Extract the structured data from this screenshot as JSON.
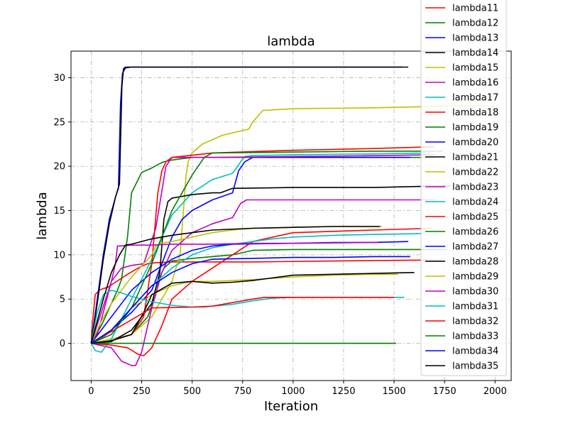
{
  "chart_data": {
    "type": "line",
    "title": "lambda",
    "xlabel": "Iteration",
    "ylabel": "lambda",
    "xlim": [
      -100,
      2080
    ],
    "ylim": [
      -4.2,
      33
    ],
    "xticks": [
      0,
      250,
      500,
      750,
      1000,
      1250,
      1500,
      1750,
      2000
    ],
    "yticks": [
      0,
      5,
      10,
      15,
      20,
      25,
      30
    ],
    "grid": true,
    "grid_style": "dash-dot",
    "legend_position": "top-right",
    "series": [
      {
        "name": "lambda11",
        "color": "#ff0000",
        "x": [
          0,
          5,
          20,
          40,
          60,
          80,
          120,
          180,
          240,
          280,
          320,
          400,
          500,
          600,
          800,
          1200,
          1600,
          1740
        ],
        "y": [
          0,
          2,
          5.5,
          6.0,
          6.2,
          6.3,
          6.9,
          7.8,
          8.6,
          9.0,
          9.1,
          9.2,
          9.2,
          9.2,
          9.2,
          9.3,
          9.4,
          9.4
        ]
      },
      {
        "name": "lambda12",
        "color": "#008000",
        "x": [
          0,
          100,
          200,
          280,
          320,
          340,
          360,
          400,
          500,
          600,
          700,
          760,
          800,
          1000,
          1200,
          1400,
          1600,
          1760
        ],
        "y": [
          0,
          0.3,
          1.0,
          3.0,
          5.5,
          7.5,
          8.5,
          9.3,
          9.6,
          9.8,
          10.0,
          10.3,
          10.5,
          10.6,
          10.6,
          10.6,
          10.6,
          10.6
        ]
      },
      {
        "name": "lambda13",
        "color": "#0000ff",
        "x": [
          0,
          30,
          60,
          90,
          120,
          135,
          145,
          155,
          170,
          200,
          400,
          800,
          1200,
          1540
        ],
        "y": [
          0,
          5,
          10,
          14,
          16.5,
          17.5,
          27,
          30.5,
          31.1,
          31.2,
          31.2,
          31.2,
          31.2,
          31.2
        ]
      },
      {
        "name": "lambda14",
        "color": "#000000",
        "x": [
          0,
          30,
          60,
          90,
          120,
          140,
          152,
          160,
          170,
          200,
          400,
          800,
          1200,
          1570
        ],
        "y": [
          0,
          4.5,
          9.5,
          13.5,
          16.5,
          18,
          29,
          31,
          31.2,
          31.2,
          31.2,
          31.2,
          31.2,
          31.2
        ]
      },
      {
        "name": "lambda15",
        "color": "#bfbf00",
        "x": [
          0,
          100,
          200,
          300,
          400,
          440,
          460,
          470,
          480,
          500,
          550,
          650,
          780,
          800,
          850,
          1000,
          1400,
          1800,
          2000
        ],
        "y": [
          0,
          0.5,
          1.0,
          3.0,
          7.0,
          10.0,
          16.0,
          19.0,
          20.5,
          21.5,
          22.5,
          23.5,
          24.2,
          25.0,
          26.3,
          26.5,
          26.6,
          26.8,
          26.8
        ]
      },
      {
        "name": "lambda16",
        "color": "#bf00bf",
        "x": [
          0,
          100,
          150,
          200,
          220,
          250,
          300,
          350,
          400,
          500,
          600,
          700,
          720,
          740,
          770,
          800,
          1000,
          1400,
          1700
        ],
        "y": [
          0,
          -0.5,
          -2.0,
          -2.5,
          -2.5,
          -1.0,
          4.0,
          8.0,
          10.5,
          12.5,
          13.5,
          14.2,
          15.0,
          15.8,
          16.2,
          16.2,
          16.2,
          16.2,
          16.2
        ]
      },
      {
        "name": "lambda17",
        "color": "#00bfbf",
        "x": [
          0,
          20,
          50,
          100,
          200,
          300,
          400,
          500,
          600,
          700,
          720,
          740,
          760,
          800,
          1000,
          1400,
          1680
        ],
        "y": [
          0,
          -0.8,
          -1.0,
          0.5,
          5,
          9.5,
          14.5,
          17.0,
          18.5,
          19.2,
          19.8,
          20.5,
          21.1,
          21.2,
          21.3,
          21.4,
          21.5
        ]
      },
      {
        "name": "lambda18",
        "color": "#ff0000",
        "x": [
          0,
          100,
          180,
          230,
          260,
          300,
          350,
          400,
          500,
          600,
          700,
          800,
          1000,
          1400,
          1690
        ],
        "y": [
          0,
          -0.2,
          -0.5,
          -1.2,
          -1.4,
          -0.5,
          2.0,
          5.0,
          7.0,
          8.5,
          10.0,
          11.5,
          12.5,
          12.8,
          13.0
        ]
      },
      {
        "name": "lambda19",
        "color": "#008000",
        "x": [
          0,
          50,
          100,
          130,
          150,
          180,
          200,
          250,
          300,
          340,
          360,
          400,
          500,
          700,
          1000,
          1400,
          1700
        ],
        "y": [
          0,
          2,
          4.5,
          6.0,
          7.2,
          12.0,
          17.0,
          19.3,
          19.8,
          20.3,
          20.5,
          20.7,
          21.0,
          21.0,
          21.0,
          21.0,
          21.0
        ]
      },
      {
        "name": "lambda20",
        "color": "#0000ff",
        "x": [
          0,
          100,
          200,
          300,
          350,
          400,
          450,
          500,
          600,
          700,
          730,
          760,
          800,
          1000,
          1400,
          1580
        ],
        "y": [
          0,
          1.5,
          3.5,
          6.0,
          9.0,
          12.0,
          14.0,
          15.0,
          16.2,
          17.0,
          19.5,
          20.5,
          21.0,
          21.0,
          21.0,
          21.0
        ]
      },
      {
        "name": "lambda21",
        "color": "#000000",
        "x": [
          0,
          100,
          200,
          300,
          340,
          360,
          380,
          400,
          500,
          600,
          640,
          700,
          1000,
          1400,
          1780
        ],
        "y": [
          0,
          0.2,
          1.5,
          4.5,
          8.0,
          14.0,
          16.0,
          16.4,
          16.8,
          17.0,
          17.0,
          17.5,
          17.6,
          17.6,
          17.8
        ]
      },
      {
        "name": "lambda22",
        "color": "#bfbf00",
        "x": [
          0,
          100,
          200,
          300,
          400,
          500,
          600,
          800,
          1000,
          1200,
          1400,
          1520
        ],
        "y": [
          0,
          1.5,
          4.0,
          5.5,
          6.5,
          7.0,
          7.0,
          7.2,
          7.5,
          7.7,
          7.8,
          7.8
        ]
      },
      {
        "name": "lambda23",
        "color": "#bf00bf",
        "x": [
          0,
          30,
          60,
          100,
          150,
          200,
          260,
          320,
          370,
          400,
          600,
          1000,
          1400,
          1700
        ],
        "y": [
          0,
          1,
          3.5,
          7,
          8.5,
          8.8,
          9.0,
          13.0,
          20.0,
          21.0,
          21.0,
          21.1,
          21.2,
          21.3
        ]
      },
      {
        "name": "lambda24",
        "color": "#00bfbf",
        "x": [
          0,
          50,
          100,
          200,
          300,
          400,
          500,
          600,
          700,
          800,
          900,
          1000,
          1200,
          1400,
          1660
        ],
        "y": [
          0,
          0.5,
          1.5,
          4.0,
          6.5,
          8.5,
          10.0,
          10.8,
          11.2,
          11.5,
          11.8,
          12.0,
          12.2,
          12.3,
          12.4
        ]
      },
      {
        "name": "lambda25",
        "color": "#ff0000",
        "x": [
          0,
          100,
          200,
          260,
          300,
          330,
          350,
          370,
          400,
          600,
          1000,
          1400,
          1700
        ],
        "y": [
          0,
          0.3,
          1.0,
          3.0,
          9.0,
          17.0,
          19.5,
          20.5,
          21.0,
          21.5,
          21.8,
          22.0,
          22.2
        ]
      },
      {
        "name": "lambda26",
        "color": "#008000",
        "x": [
          0,
          1000,
          1400,
          1510
        ],
        "y": [
          0,
          0,
          0,
          0
        ]
      },
      {
        "name": "lambda27",
        "color": "#0000ff",
        "x": [
          0,
          50,
          100,
          200,
          300,
          400,
          500,
          600,
          700,
          1000,
          1400,
          1570
        ],
        "y": [
          0,
          1.5,
          3.0,
          6.0,
          8.0,
          9.5,
          10.5,
          11.0,
          11.2,
          11.3,
          11.4,
          11.5
        ]
      },
      {
        "name": "lambda28",
        "color": "#000000",
        "x": [
          0,
          100,
          200,
          260,
          300,
          400,
          500,
          600,
          700,
          800,
          900,
          1000,
          1200,
          1400,
          1600
        ],
        "y": [
          0,
          0.3,
          1.0,
          3.5,
          5.5,
          6.8,
          7.0,
          6.8,
          6.9,
          7.1,
          7.4,
          7.7,
          7.8,
          7.9,
          8.0
        ]
      },
      {
        "name": "lambda29",
        "color": "#bfbf00",
        "x": [
          0,
          50,
          100,
          200,
          300,
          320,
          340,
          400,
          500,
          600,
          700,
          800,
          1000,
          1200,
          1440
        ],
        "y": [
          0,
          2.5,
          4.5,
          7.5,
          10.0,
          11.0,
          11.3,
          11.5,
          12.0,
          12.5,
          12.8,
          13.0,
          13.1,
          13.2,
          13.2
        ]
      },
      {
        "name": "lambda30",
        "color": "#bf00bf",
        "x": [
          0,
          50,
          100,
          120,
          130,
          150,
          200,
          300,
          400,
          600,
          800,
          1000,
          1200,
          1420
        ],
        "y": [
          0,
          3.5,
          7.0,
          9.0,
          11.0,
          11.0,
          11.1,
          11.1,
          11.2,
          11.2,
          11.3,
          11.3,
          11.4,
          11.4
        ]
      },
      {
        "name": "lambda31",
        "color": "#00bfbf",
        "x": [
          0,
          30,
          60,
          100,
          150,
          200,
          300,
          400,
          500,
          560,
          600,
          700,
          800,
          900,
          1000,
          1200,
          1400,
          1550
        ],
        "y": [
          0,
          3.5,
          5.5,
          6.0,
          5.7,
          5.3,
          4.7,
          4.3,
          4.1,
          4.1,
          4.2,
          4.4,
          4.8,
          5.1,
          5.2,
          5.2,
          5.2,
          5.2
        ]
      },
      {
        "name": "lambda32",
        "color": "#ff0000",
        "x": [
          0,
          300,
          500,
          600,
          700,
          800,
          860,
          1000,
          1200,
          1400,
          1500
        ],
        "y": [
          0,
          4.0,
          4.1,
          4.2,
          4.6,
          5.0,
          5.2,
          5.2,
          5.2,
          5.2,
          5.2
        ]
      },
      {
        "name": "lambda33",
        "color": "#008000",
        "x": [
          0,
          100,
          200,
          300,
          400,
          500,
          560,
          600,
          1000,
          1400,
          1740
        ],
        "y": [
          0,
          1.0,
          4.0,
          9.0,
          15.0,
          19.0,
          21.0,
          21.5,
          21.6,
          21.7,
          21.7
        ]
      },
      {
        "name": "lambda34",
        "color": "#0000ff",
        "x": [
          0,
          100,
          200,
          300,
          400,
          500,
          600,
          800,
          1000,
          1200,
          1400,
          1580
        ],
        "y": [
          0,
          1.5,
          4.0,
          6.5,
          8.0,
          9.0,
          9.5,
          9.6,
          9.7,
          9.7,
          9.8,
          9.8
        ]
      },
      {
        "name": "lambda35",
        "color": "#000000",
        "x": [
          0,
          60,
          100,
          140,
          170,
          200,
          300,
          400,
          500,
          600,
          800,
          1000,
          1200,
          1430
        ],
        "y": [
          0,
          5,
          8,
          10,
          11.1,
          11.2,
          11.8,
          12.2,
          12.5,
          12.8,
          13.0,
          13.1,
          13.2,
          13.2
        ]
      }
    ]
  }
}
